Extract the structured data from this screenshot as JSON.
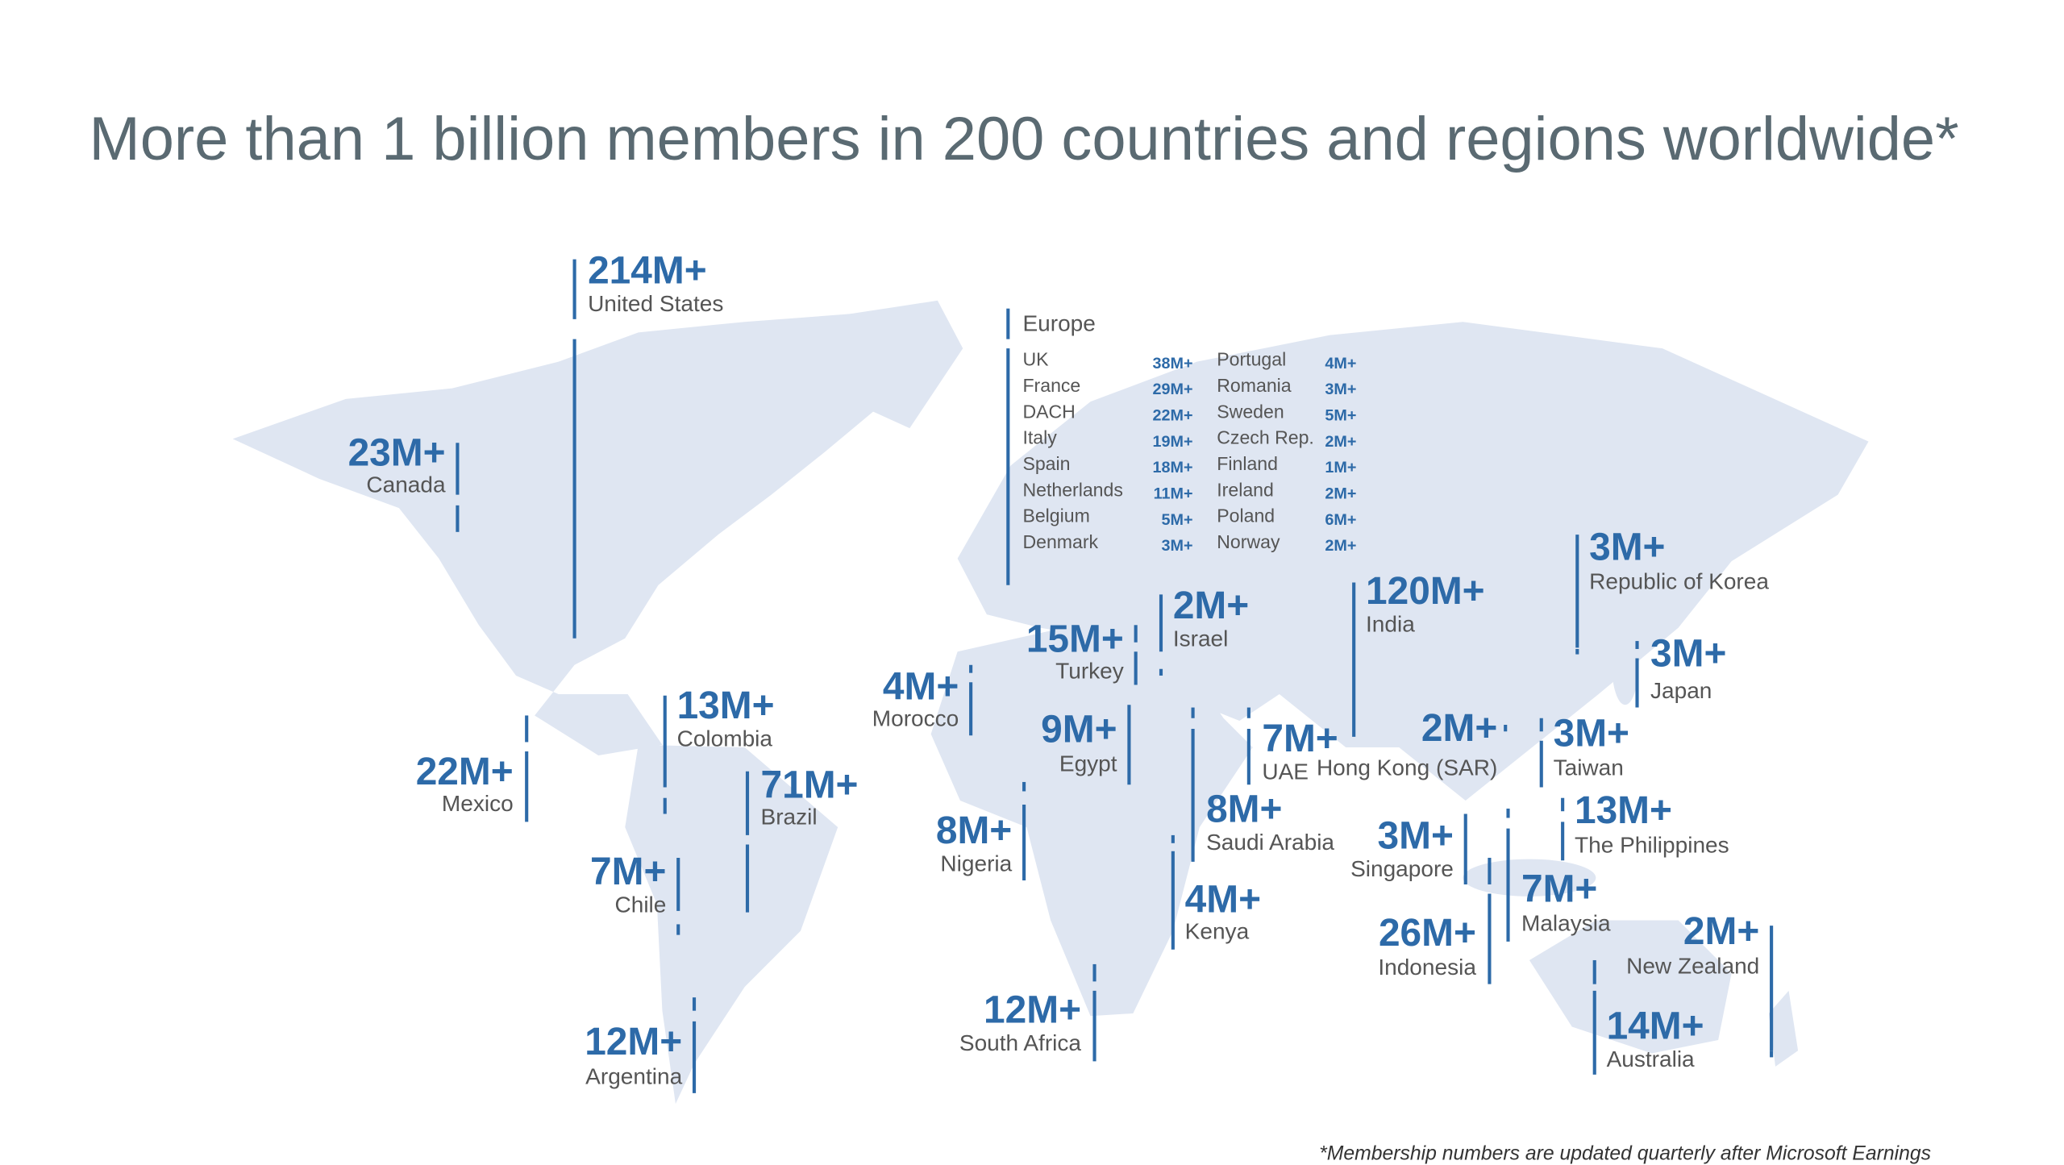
{
  "title": "More than 1 billion members in 200 countries and regions worldwide*",
  "footnote": "*Membership numbers are updated quarterly after Microsoft Earnings",
  "countries": [
    {
      "members": "214M+",
      "name": "United States"
    },
    {
      "members": "23M+",
      "name": "Canada"
    },
    {
      "members": "22M+",
      "name": "Mexico"
    },
    {
      "members": "13M+",
      "name": "Colombia"
    },
    {
      "members": "71M+",
      "name": "Brazil"
    },
    {
      "members": "7M+",
      "name": "Chile"
    },
    {
      "members": "12M+",
      "name": "Argentina"
    },
    {
      "members": "4M+",
      "name": "Morocco"
    },
    {
      "members": "15M+",
      "name": "Turkey"
    },
    {
      "members": "2M+",
      "name": "Israel"
    },
    {
      "members": "9M+",
      "name": "Egypt"
    },
    {
      "members": "8M+",
      "name": "Nigeria"
    },
    {
      "members": "7M+",
      "name": "UAE"
    },
    {
      "members": "8M+",
      "name": "Saudi Arabia"
    },
    {
      "members": "4M+",
      "name": "Kenya"
    },
    {
      "members": "12M+",
      "name": "South Africa"
    },
    {
      "members": "120M+",
      "name": "India"
    },
    {
      "members": "2M+",
      "name": "Hong Kong (SAR)"
    },
    {
      "members": "3M+",
      "name": "Republic of Korea"
    },
    {
      "members": "3M+",
      "name": "Japan"
    },
    {
      "members": "3M+",
      "name": "Taiwan"
    },
    {
      "members": "13M+",
      "name": "The Philippines"
    },
    {
      "members": "3M+",
      "name": "Singapore"
    },
    {
      "members": "7M+",
      "name": "Malaysia"
    },
    {
      "members": "26M+",
      "name": "Indonesia"
    },
    {
      "members": "2M+",
      "name": "New Zealand"
    },
    {
      "members": "14M+",
      "name": "Australia"
    }
  ],
  "europe": {
    "title": "Europe",
    "rows": [
      {
        "name": "UK",
        "members": "38M+"
      },
      {
        "name": "France",
        "members": "29M+"
      },
      {
        "name": "DACH",
        "members": "22M+"
      },
      {
        "name": "Italy",
        "members": "19M+"
      },
      {
        "name": "Spain",
        "members": "18M+"
      },
      {
        "name": "Netherlands",
        "members": "11M+"
      },
      {
        "name": "Belgium",
        "members": "5M+"
      },
      {
        "name": "Denmark",
        "members": "3M+"
      },
      {
        "name": "Portugal",
        "members": "4M+"
      },
      {
        "name": "Romania",
        "members": "3M+"
      },
      {
        "name": "Sweden",
        "members": "5M+"
      },
      {
        "name": "Czech Rep.",
        "members": "2M+"
      },
      {
        "name": "Finland",
        "members": "1M+"
      },
      {
        "name": "Ireland",
        "members": "2M+"
      },
      {
        "name": "Poland",
        "members": "6M+"
      },
      {
        "name": "Norway",
        "members": "2M+"
      }
    ]
  }
}
